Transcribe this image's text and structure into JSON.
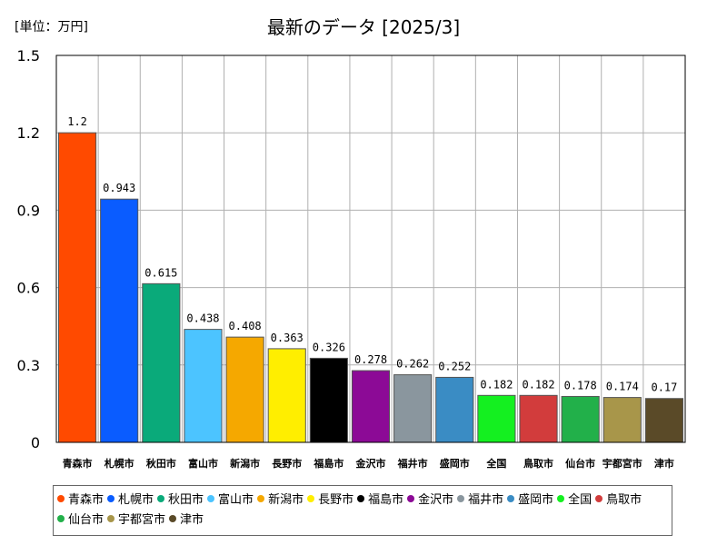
{
  "chart_data": {
    "type": "bar",
    "title": "最新のデータ [2025/3]",
    "unit_label": "[単位：万円]",
    "ylim": [
      0,
      1.5
    ],
    "yticks": [
      "0",
      "0.3",
      "0.6",
      "0.9",
      "1.2",
      "1.5"
    ],
    "ytick_values": [
      0,
      0.3,
      0.6,
      0.9,
      1.2,
      1.5
    ],
    "grid": true,
    "legend_placement": "bottom",
    "categories": [
      "青森市",
      "札幌市",
      "秋田市",
      "富山市",
      "新潟市",
      "長野市",
      "福島市",
      "金沢市",
      "福井市",
      "盛岡市",
      "全国",
      "鳥取市",
      "仙台市",
      "宇都宮市",
      "津市"
    ],
    "values": [
      1.2,
      0.943,
      0.615,
      0.438,
      0.408,
      0.363,
      0.326,
      0.278,
      0.262,
      0.252,
      0.182,
      0.182,
      0.178,
      0.174,
      0.17
    ],
    "value_labels": [
      "1.2",
      "0.943",
      "0.615",
      "0.438",
      "0.408",
      "0.363",
      "0.326",
      "0.278",
      "0.262",
      "0.252",
      "0.182",
      "0.182",
      "0.178",
      "0.174",
      "0.17"
    ],
    "colors": [
      "#ff4a00",
      "#0a5cff",
      "#0aaa7a",
      "#4cc4ff",
      "#f5a800",
      "#ffee00",
      "#000000",
      "#8c0a96",
      "#8a969e",
      "#3a8cc4",
      "#14f020",
      "#d23c3c",
      "#22b04a",
      "#a8964a",
      "#5a4a28"
    ]
  }
}
